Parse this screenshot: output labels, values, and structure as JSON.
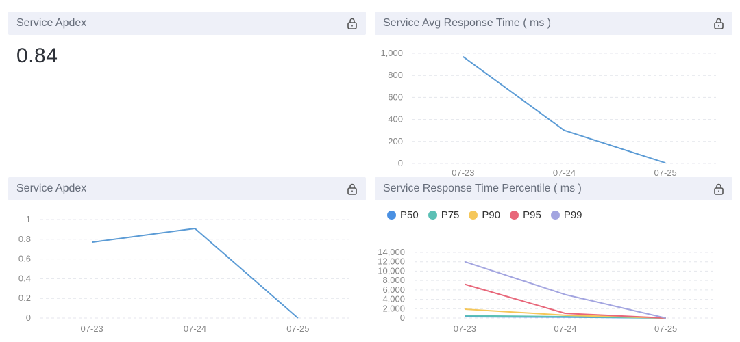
{
  "panels": [
    {
      "id": "apdex-value",
      "title": "Service Apdex",
      "value": "0.84"
    },
    {
      "id": "avg-response",
      "title": "Service Avg Response Time ( ms )"
    },
    {
      "id": "apdex-chart",
      "title": "Service Apdex"
    },
    {
      "id": "percentile",
      "title": "Service Response Time Percentile ( ms )"
    }
  ],
  "icons": {
    "lock": "lock-icon"
  },
  "colors": {
    "header_bg": "#eef0f8",
    "line": "#5b9bd5",
    "grid": "#e6e8ee"
  },
  "chart_data": [
    {
      "type": "line",
      "title": "Service Avg Response Time ( ms )",
      "categories": [
        "07-23",
        "07-24",
        "07-25"
      ],
      "series": [
        {
          "values": [
            970,
            300,
            5
          ]
        }
      ],
      "ylim": [
        0,
        1000
      ],
      "yticks": [
        "0",
        "200",
        "400",
        "600",
        "800",
        "1,000"
      ],
      "grid": true
    },
    {
      "type": "line",
      "title": "Service Apdex",
      "categories": [
        "07-23",
        "07-24",
        "07-25"
      ],
      "series": [
        {
          "values": [
            0.77,
            0.91,
            0
          ]
        }
      ],
      "ylim": [
        0,
        1
      ],
      "yticks": [
        "0",
        "0.2",
        "0.4",
        "0.6",
        "0.8",
        "1"
      ],
      "grid": true
    },
    {
      "type": "line",
      "title": "Service Response Time Percentile ( ms )",
      "categories": [
        "07-23",
        "07-24",
        "07-25"
      ],
      "series": [
        {
          "name": "P50",
          "color": "#4a90e2",
          "values": [
            300,
            200,
            0
          ]
        },
        {
          "name": "P75",
          "color": "#5bc0b5",
          "values": [
            500,
            300,
            0
          ]
        },
        {
          "name": "P90",
          "color": "#f5c75a",
          "values": [
            1900,
            600,
            0
          ]
        },
        {
          "name": "P95",
          "color": "#e8677a",
          "values": [
            7200,
            1000,
            0
          ]
        },
        {
          "name": "P99",
          "color": "#a3a5e0",
          "values": [
            12000,
            5000,
            0
          ]
        }
      ],
      "ylim": [
        0,
        14000
      ],
      "yticks": [
        "0",
        "2,000",
        "4,000",
        "6,000",
        "8,000",
        "10,000",
        "12,000",
        "14,000"
      ],
      "legend": "top-left",
      "grid": true
    }
  ]
}
